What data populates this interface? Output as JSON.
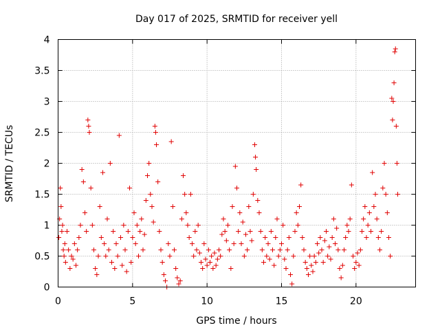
{
  "chart_data": {
    "type": "scatter",
    "title": "Day 017 of 2025, SRMTID for receiver yell",
    "xlabel": "GPS time / hours",
    "ylabel": "SRMTID / TECUs",
    "xlim": [
      0,
      24
    ],
    "ylim": [
      0,
      4
    ],
    "x_ticks": [
      0,
      5,
      10,
      15,
      20
    ],
    "x_tick_labels": [
      "0",
      "5",
      "10",
      "15",
      "20"
    ],
    "y_ticks": [
      0,
      0.5,
      1,
      1.5,
      2,
      2.5,
      3,
      3.5,
      4
    ],
    "y_tick_labels": [
      "0",
      "0.5",
      "1",
      "1.5",
      "2",
      "2.5",
      "3",
      "3.5",
      "4"
    ],
    "grid": true,
    "marker": "+",
    "color": "#e00000",
    "series": [
      {
        "name": "SRMTID",
        "points": [
          [
            0.05,
            0.8
          ],
          [
            0.1,
            1.1
          ],
          [
            0.15,
            1.6
          ],
          [
            0.2,
            1.3
          ],
          [
            0.25,
            0.9
          ],
          [
            0.3,
            1.0
          ],
          [
            0.35,
            0.6
          ],
          [
            0.4,
            0.5
          ],
          [
            0.45,
            0.7
          ],
          [
            0.5,
            0.4
          ],
          [
            0.6,
            0.9
          ],
          [
            0.7,
            0.6
          ],
          [
            0.8,
            0.3
          ],
          [
            0.9,
            0.5
          ],
          [
            1.0,
            0.45
          ],
          [
            1.1,
            0.7
          ],
          [
            1.2,
            0.35
          ],
          [
            1.3,
            0.6
          ],
          [
            1.4,
            0.8
          ],
          [
            1.5,
            1.0
          ],
          [
            1.6,
            1.9
          ],
          [
            1.7,
            1.7
          ],
          [
            1.8,
            1.2
          ],
          [
            1.9,
            0.9
          ],
          [
            2.0,
            2.7
          ],
          [
            2.05,
            2.6
          ],
          [
            2.1,
            2.5
          ],
          [
            2.2,
            1.6
          ],
          [
            2.3,
            1.0
          ],
          [
            2.4,
            0.6
          ],
          [
            2.5,
            0.3
          ],
          [
            2.6,
            0.2
          ],
          [
            2.7,
            0.5
          ],
          [
            2.8,
            1.3
          ],
          [
            2.9,
            0.8
          ],
          [
            3.0,
            1.85
          ],
          [
            3.1,
            0.7
          ],
          [
            3.2,
            0.5
          ],
          [
            3.3,
            1.1
          ],
          [
            3.4,
            0.6
          ],
          [
            3.5,
            2.0
          ],
          [
            3.6,
            0.4
          ],
          [
            3.7,
            0.9
          ],
          [
            3.8,
            0.3
          ],
          [
            3.9,
            0.7
          ],
          [
            4.0,
            0.5
          ],
          [
            4.1,
            2.45
          ],
          [
            4.2,
            0.8
          ],
          [
            4.3,
            0.35
          ],
          [
            4.4,
            1.0
          ],
          [
            4.5,
            0.6
          ],
          [
            4.6,
            0.25
          ],
          [
            4.7,
            0.9
          ],
          [
            4.8,
            1.6
          ],
          [
            4.9,
            0.4
          ],
          [
            5.0,
            0.8
          ],
          [
            5.1,
            1.2
          ],
          [
            5.2,
            0.7
          ],
          [
            5.3,
            1.0
          ],
          [
            5.4,
            0.5
          ],
          [
            5.5,
            0.9
          ],
          [
            5.6,
            1.1
          ],
          [
            5.7,
            0.6
          ],
          [
            5.8,
            0.85
          ],
          [
            5.9,
            1.4
          ],
          [
            6.0,
            1.8
          ],
          [
            6.1,
            2.0
          ],
          [
            6.2,
            1.5
          ],
          [
            6.3,
            1.3
          ],
          [
            6.4,
            1.05
          ],
          [
            6.5,
            2.6
          ],
          [
            6.55,
            2.5
          ],
          [
            6.6,
            2.3
          ],
          [
            6.7,
            1.7
          ],
          [
            6.8,
            0.9
          ],
          [
            6.9,
            0.6
          ],
          [
            7.0,
            0.4
          ],
          [
            7.1,
            0.2
          ],
          [
            7.2,
            0.1
          ],
          [
            7.3,
            0.0
          ],
          [
            7.4,
            0.7
          ],
          [
            7.5,
            0.5
          ],
          [
            7.6,
            2.35
          ],
          [
            7.7,
            1.3
          ],
          [
            7.8,
            0.6
          ],
          [
            7.9,
            0.3
          ],
          [
            8.0,
            0.15
          ],
          [
            8.1,
            0.05
          ],
          [
            8.2,
            0.1
          ],
          [
            8.3,
            1.1
          ],
          [
            8.4,
            1.8
          ],
          [
            8.5,
            1.5
          ],
          [
            8.6,
            1.2
          ],
          [
            8.7,
            1.0
          ],
          [
            8.8,
            0.8
          ],
          [
            8.9,
            1.5
          ],
          [
            9.0,
            0.7
          ],
          [
            9.1,
            0.5
          ],
          [
            9.2,
            0.9
          ],
          [
            9.3,
            0.6
          ],
          [
            9.4,
            1.0
          ],
          [
            9.5,
            0.55
          ],
          [
            9.6,
            0.4
          ],
          [
            9.7,
            0.3
          ],
          [
            9.8,
            0.7
          ],
          [
            9.9,
            0.45
          ],
          [
            10.0,
            0.35
          ],
          [
            10.1,
            0.6
          ],
          [
            10.2,
            0.4
          ],
          [
            10.3,
            0.5
          ],
          [
            10.4,
            0.3
          ],
          [
            10.5,
            0.55
          ],
          [
            10.6,
            0.35
          ],
          [
            10.7,
            0.45
          ],
          [
            10.8,
            0.6
          ],
          [
            10.9,
            0.5
          ],
          [
            11.0,
            0.85
          ],
          [
            11.1,
            1.1
          ],
          [
            11.2,
            0.9
          ],
          [
            11.3,
            0.75
          ],
          [
            11.4,
            1.0
          ],
          [
            11.5,
            0.6
          ],
          [
            11.6,
            0.3
          ],
          [
            11.7,
            1.3
          ],
          [
            11.8,
            0.7
          ],
          [
            11.9,
            1.95
          ],
          [
            12.0,
            1.6
          ],
          [
            12.1,
            0.9
          ],
          [
            12.2,
            1.2
          ],
          [
            12.3,
            0.7
          ],
          [
            12.4,
            1.05
          ],
          [
            12.5,
            0.5
          ],
          [
            12.6,
            0.85
          ],
          [
            12.7,
            0.6
          ],
          [
            12.8,
            1.3
          ],
          [
            12.9,
            0.9
          ],
          [
            13.0,
            0.75
          ],
          [
            13.1,
            1.5
          ],
          [
            13.2,
            2.3
          ],
          [
            13.25,
            2.1
          ],
          [
            13.3,
            1.9
          ],
          [
            13.4,
            1.4
          ],
          [
            13.5,
            1.2
          ],
          [
            13.6,
            0.9
          ],
          [
            13.7,
            0.6
          ],
          [
            13.8,
            0.4
          ],
          [
            13.9,
            0.8
          ],
          [
            14.0,
            0.5
          ],
          [
            14.1,
            0.7
          ],
          [
            14.2,
            0.45
          ],
          [
            14.3,
            0.9
          ],
          [
            14.4,
            0.6
          ],
          [
            14.5,
            0.35
          ],
          [
            14.6,
            0.8
          ],
          [
            14.7,
            1.1
          ],
          [
            14.8,
            0.5
          ],
          [
            14.9,
            0.6
          ],
          [
            15.0,
            0.7
          ],
          [
            15.1,
            1.0
          ],
          [
            15.2,
            0.45
          ],
          [
            15.3,
            0.3
          ],
          [
            15.4,
            0.6
          ],
          [
            15.5,
            0.8
          ],
          [
            15.6,
            0.2
          ],
          [
            15.7,
            0.05
          ],
          [
            15.8,
            0.5
          ],
          [
            15.9,
            0.9
          ],
          [
            16.0,
            1.2
          ],
          [
            16.1,
            1.0
          ],
          [
            16.2,
            1.3
          ],
          [
            16.3,
            1.65
          ],
          [
            16.4,
            0.8
          ],
          [
            16.5,
            0.6
          ],
          [
            16.6,
            0.4
          ],
          [
            16.7,
            0.3
          ],
          [
            16.8,
            0.2
          ],
          [
            16.9,
            0.5
          ],
          [
            17.0,
            0.35
          ],
          [
            17.1,
            0.25
          ],
          [
            17.2,
            0.5
          ],
          [
            17.3,
            0.4
          ],
          [
            17.4,
            0.7
          ],
          [
            17.5,
            0.55
          ],
          [
            17.6,
            0.8
          ],
          [
            17.7,
            0.6
          ],
          [
            17.8,
            0.4
          ],
          [
            17.9,
            0.75
          ],
          [
            18.0,
            0.9
          ],
          [
            18.1,
            0.5
          ],
          [
            18.2,
            0.65
          ],
          [
            18.3,
            0.45
          ],
          [
            18.4,
            0.8
          ],
          [
            18.5,
            1.1
          ],
          [
            18.6,
            0.7
          ],
          [
            18.7,
            0.95
          ],
          [
            18.8,
            0.6
          ],
          [
            18.9,
            0.3
          ],
          [
            19.0,
            0.15
          ],
          [
            19.1,
            0.35
          ],
          [
            19.2,
            0.6
          ],
          [
            19.3,
            0.8
          ],
          [
            19.4,
            1.0
          ],
          [
            19.5,
            0.9
          ],
          [
            19.6,
            1.1
          ],
          [
            19.7,
            1.65
          ],
          [
            19.8,
            0.5
          ],
          [
            19.9,
            0.3
          ],
          [
            20.0,
            0.4
          ],
          [
            20.1,
            0.55
          ],
          [
            20.2,
            0.35
          ],
          [
            20.3,
            0.6
          ],
          [
            20.4,
            0.9
          ],
          [
            20.5,
            1.1
          ],
          [
            20.6,
            1.3
          ],
          [
            20.7,
            0.8
          ],
          [
            20.8,
            1.0
          ],
          [
            20.9,
            1.2
          ],
          [
            21.0,
            0.9
          ],
          [
            21.1,
            1.85
          ],
          [
            21.2,
            1.3
          ],
          [
            21.3,
            1.5
          ],
          [
            21.4,
            1.1
          ],
          [
            21.5,
            0.8
          ],
          [
            21.6,
            0.6
          ],
          [
            21.7,
            0.9
          ],
          [
            21.8,
            1.6
          ],
          [
            21.9,
            2.0
          ],
          [
            22.0,
            1.5
          ],
          [
            22.1,
            1.2
          ],
          [
            22.2,
            0.8
          ],
          [
            22.3,
            0.5
          ],
          [
            22.4,
            3.05
          ],
          [
            22.45,
            2.7
          ],
          [
            22.5,
            3.0
          ],
          [
            22.55,
            3.3
          ],
          [
            22.6,
            3.8
          ],
          [
            22.65,
            3.85
          ],
          [
            22.7,
            2.6
          ],
          [
            22.75,
            2.0
          ],
          [
            22.8,
            1.5
          ]
        ]
      }
    ]
  }
}
